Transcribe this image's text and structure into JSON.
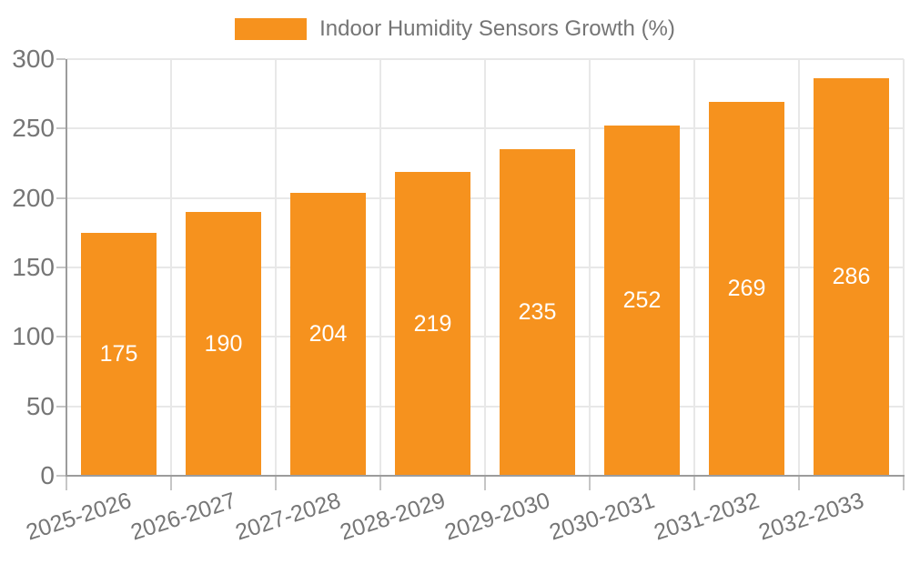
{
  "chart_data": {
    "type": "bar",
    "title": "",
    "legend": [
      "Indoor Humidity Sensors Growth (%)"
    ],
    "legend_position": "top-center",
    "categories": [
      "2025-2026",
      "2026-2027",
      "2027-2028",
      "2028-2029",
      "2029-2030",
      "2030-2031",
      "2031-2032",
      "2032-2033"
    ],
    "values": [
      175,
      190,
      204,
      219,
      235,
      252,
      269,
      286
    ],
    "value_labels": [
      "175",
      "190",
      "204",
      "219",
      "235",
      "252",
      "269",
      "286"
    ],
    "xlabel": "",
    "ylabel": "",
    "ylim": [
      0,
      300
    ],
    "yticks": [
      0,
      50,
      100,
      150,
      200,
      250,
      300
    ],
    "grid": true,
    "x_label_rotation_deg": -18,
    "colors": {
      "bar": "#f6921e",
      "value_label": "#ffffff",
      "axis_line": "#9c9c9c",
      "gridline": "#e8e8e8",
      "tick": "#c6c6c6",
      "text": "#767676",
      "background": "#ffffff"
    }
  }
}
